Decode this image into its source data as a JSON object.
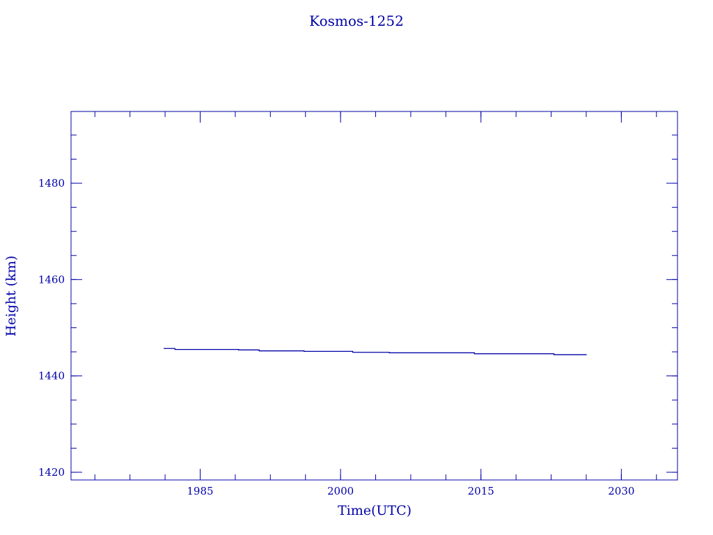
{
  "chart_data": {
    "type": "line",
    "title": "Kosmos-1252",
    "xlabel": "Time(UTC)",
    "ylabel": "Height (km)",
    "xlim": [
      1971.2,
      2036.0
    ],
    "ylim": [
      1418.4,
      1494.9
    ],
    "x_major_ticks": [
      1985,
      2000,
      2015,
      2030
    ],
    "x_minor_step": 3.75,
    "y_major_ticks": [
      1420,
      1440,
      1460,
      1480
    ],
    "y_minor_step": 5,
    "grid": false,
    "color": "#0000a8",
    "series": [
      {
        "x": [
          1981.1,
          1982.3,
          1982.3,
          1989.1,
          1989.1,
          1991.3,
          1991.3,
          1996.1,
          1996.1,
          2001.3,
          2001.3,
          2005.2,
          2005.2,
          2014.3,
          2014.3,
          2022.8,
          2022.8,
          2026.3
        ],
        "y": [
          1445.7,
          1445.7,
          1445.5,
          1445.5,
          1445.4,
          1445.4,
          1445.2,
          1445.2,
          1445.1,
          1445.1,
          1444.9,
          1444.9,
          1444.8,
          1444.8,
          1444.6,
          1444.6,
          1444.4,
          1444.4
        ]
      }
    ]
  }
}
